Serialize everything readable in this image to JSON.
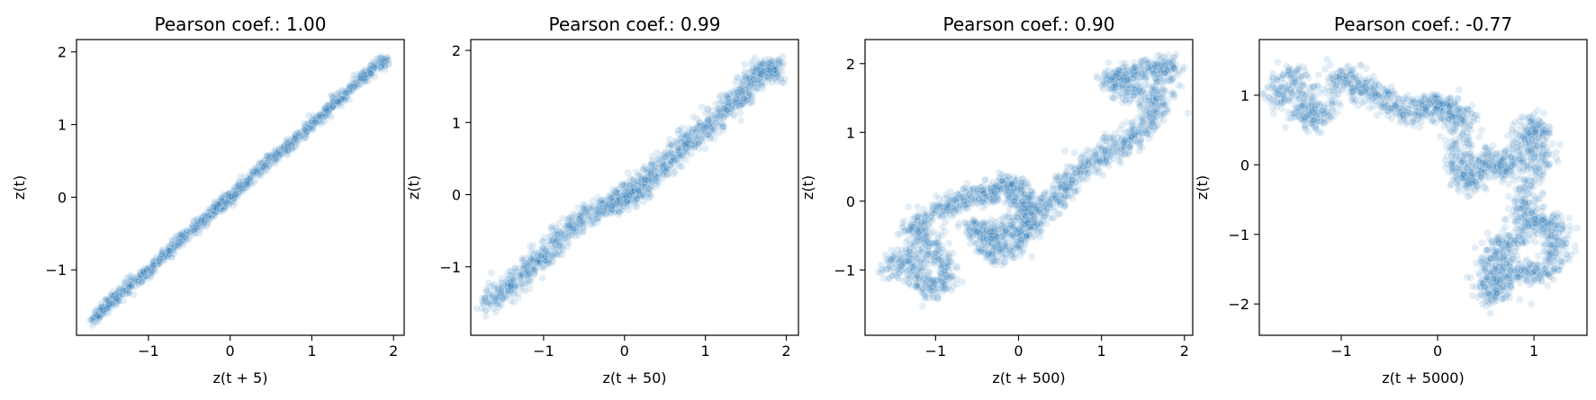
{
  "figure": {
    "background": "#ffffff",
    "point_color": "#1f77b4"
  },
  "chart_data": [
    {
      "type": "scatter",
      "title": "Pearson coef.: 1.00",
      "xlabel": "z(t + 5)",
      "ylabel": "z(t)",
      "xlim": [
        -1.88,
        2.13
      ],
      "ylim": [
        -1.9,
        2.17
      ],
      "xticks": [
        -1,
        0,
        1,
        2
      ],
      "xtick_labels": [
        "−1",
        "0",
        "1",
        "2"
      ],
      "yticks": [
        -1,
        0,
        1,
        2
      ],
      "ytick_labels": [
        "−1",
        "0",
        "1",
        "2"
      ],
      "path": [
        [
          -1.7,
          -1.7
        ],
        [
          -1.4,
          -1.38
        ],
        [
          -1.0,
          -1.02
        ],
        [
          -0.6,
          -0.58
        ],
        [
          -0.2,
          -0.18
        ],
        [
          0.0,
          0.0
        ],
        [
          0.4,
          0.42
        ],
        [
          0.8,
          0.8
        ],
        [
          1.2,
          1.2
        ],
        [
          1.6,
          1.62
        ],
        [
          1.9,
          1.9
        ]
      ]
    },
    {
      "type": "scatter",
      "title": "Pearson coef.: 0.99",
      "xlabel": "z(t + 50)",
      "ylabel": "z(t)",
      "xlim": [
        -1.9,
        2.15
      ],
      "ylim": [
        -1.95,
        2.15
      ],
      "xticks": [
        -1,
        0,
        1,
        2
      ],
      "xtick_labels": [
        "−1",
        "0",
        "1",
        "2"
      ],
      "yticks": [
        -1,
        0,
        1,
        2
      ],
      "ytick_labels": [
        "−1",
        "0",
        "1",
        "2"
      ],
      "path": [
        [
          -1.7,
          -1.5
        ],
        [
          -1.45,
          -1.3
        ],
        [
          -1.2,
          -1.05
        ],
        [
          -1.0,
          -0.85
        ],
        [
          -0.75,
          -0.55
        ],
        [
          -0.5,
          -0.3
        ],
        [
          -0.2,
          -0.15
        ],
        [
          0.0,
          -0.05
        ],
        [
          0.15,
          0.05
        ],
        [
          0.3,
          0.25
        ],
        [
          0.55,
          0.45
        ],
        [
          0.75,
          0.75
        ],
        [
          1.0,
          0.9
        ],
        [
          1.25,
          1.2
        ],
        [
          1.45,
          1.35
        ],
        [
          1.6,
          1.65
        ],
        [
          1.75,
          1.75
        ],
        [
          1.9,
          1.7
        ]
      ]
    },
    {
      "type": "scatter",
      "title": "Pearson coef.: 0.90",
      "xlabel": "z(t + 500)",
      "ylabel": "z(t)",
      "xlim": [
        -1.85,
        2.1
      ],
      "ylim": [
        -1.95,
        2.35
      ],
      "xticks": [
        -1,
        0,
        1,
        2
      ],
      "xtick_labels": [
        "−1",
        "0",
        "1",
        "2"
      ],
      "yticks": [
        -1,
        0,
        1,
        2
      ],
      "ytick_labels": [
        "−1",
        "0",
        "1",
        "2"
      ],
      "path": [
        [
          -1.6,
          -1.0
        ],
        [
          -1.3,
          -0.8
        ],
        [
          -1.1,
          -1.3
        ],
        [
          -0.85,
          -1.1
        ],
        [
          -1.05,
          -0.6
        ],
        [
          -1.3,
          -0.4
        ],
        [
          -0.9,
          -0.1
        ],
        [
          -0.6,
          0.05
        ],
        [
          -0.3,
          0.1
        ],
        [
          -0.1,
          0.3
        ],
        [
          0.05,
          0.0
        ],
        [
          0.2,
          -0.3
        ],
        [
          0.0,
          -0.6
        ],
        [
          -0.3,
          -0.8
        ],
        [
          -0.55,
          -0.35
        ],
        [
          -0.3,
          -0.5
        ],
        [
          0.1,
          -0.2
        ],
        [
          0.45,
          0.0
        ],
        [
          0.6,
          0.3
        ],
        [
          0.9,
          0.6
        ],
        [
          1.2,
          0.8
        ],
        [
          1.5,
          1.0
        ],
        [
          1.7,
          1.4
        ],
        [
          1.3,
          1.6
        ],
        [
          1.1,
          1.8
        ],
        [
          1.5,
          1.9
        ],
        [
          1.8,
          2.0
        ],
        [
          1.7,
          1.5
        ]
      ]
    },
    {
      "type": "scatter",
      "title": "Pearson coef.: -0.77",
      "xlabel": "z(t + 5000)",
      "ylabel": "z(t)",
      "xlim": [
        -1.85,
        1.55
      ],
      "ylim": [
        -2.45,
        1.8
      ],
      "xticks": [
        -1,
        0,
        1
      ],
      "xtick_labels": [
        "−1",
        "0",
        "1"
      ],
      "yticks": [
        -2,
        -1,
        0,
        1
      ],
      "ytick_labels": [
        "−2",
        "−1",
        "0",
        "1"
      ],
      "path": [
        [
          -1.75,
          0.9
        ],
        [
          -1.5,
          1.3
        ],
        [
          -1.4,
          0.8
        ],
        [
          -1.25,
          0.6
        ],
        [
          -1.0,
          1.35
        ],
        [
          -0.8,
          1.1
        ],
        [
          -0.55,
          0.95
        ],
        [
          -0.3,
          0.7
        ],
        [
          -0.05,
          0.9
        ],
        [
          0.1,
          0.8
        ],
        [
          0.25,
          0.65
        ],
        [
          0.2,
          0.0
        ],
        [
          0.35,
          -0.3
        ],
        [
          0.5,
          0.1
        ],
        [
          0.7,
          -0.1
        ],
        [
          0.9,
          0.3
        ],
        [
          1.0,
          0.6
        ],
        [
          1.05,
          0.1
        ],
        [
          0.9,
          -0.5
        ],
        [
          0.95,
          -0.9
        ],
        [
          1.2,
          -0.8
        ],
        [
          1.25,
          -1.2
        ],
        [
          1.05,
          -1.6
        ],
        [
          0.75,
          -1.5
        ],
        [
          0.6,
          -1.9
        ],
        [
          0.5,
          -1.6
        ],
        [
          0.65,
          -1.2
        ],
        [
          0.85,
          -1.0
        ]
      ]
    }
  ]
}
